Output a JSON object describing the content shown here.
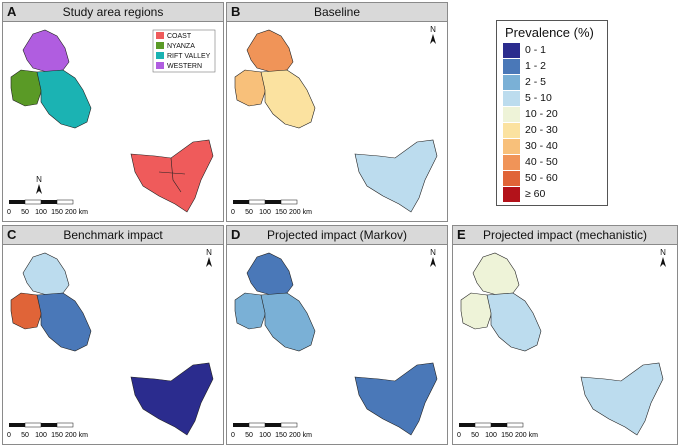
{
  "panels": [
    {
      "letter": "A",
      "title": "Study area regions"
    },
    {
      "letter": "B",
      "title": "Baseline"
    },
    {
      "letter": "C",
      "title": "Benchmark impact"
    },
    {
      "letter": "D",
      "title": "Projected impact (Markov)"
    },
    {
      "letter": "E",
      "title": "Projected impact (mechanistic)"
    }
  ],
  "regions_legend": {
    "items": [
      {
        "label": "COAST",
        "color": "#ef5b5b"
      },
      {
        "label": "NYANZA",
        "color": "#5a9a26"
      },
      {
        "label": "RIFT VALLEY",
        "color": "#1bb3b3"
      },
      {
        "label": "WESTERN",
        "color": "#b05de0"
      }
    ]
  },
  "scalebar": {
    "ticks": [
      "0",
      "50",
      "100",
      "150",
      "200 km"
    ]
  },
  "north_label": "N",
  "prevalence_legend": {
    "title": "Prevalence (%)",
    "classes": [
      {
        "label": "0 - 1",
        "color": "#2b2c8e"
      },
      {
        "label": "1 - 2",
        "color": "#4a78b8"
      },
      {
        "label": "2 - 5",
        "color": "#7ab0d6"
      },
      {
        "label": "5 - 10",
        "color": "#bcdcee"
      },
      {
        "label": "10 - 20",
        "color": "#eef3d8"
      },
      {
        "label": "20 - 30",
        "color": "#fbe2a0"
      },
      {
        "label": "30 - 40",
        "color": "#f8c07a"
      },
      {
        "label": "40 - 50",
        "color": "#f09458"
      },
      {
        "label": "50 - 60",
        "color": "#e06438"
      },
      {
        "label": "≥ 60",
        "color": "#b3121a"
      }
    ]
  }
}
